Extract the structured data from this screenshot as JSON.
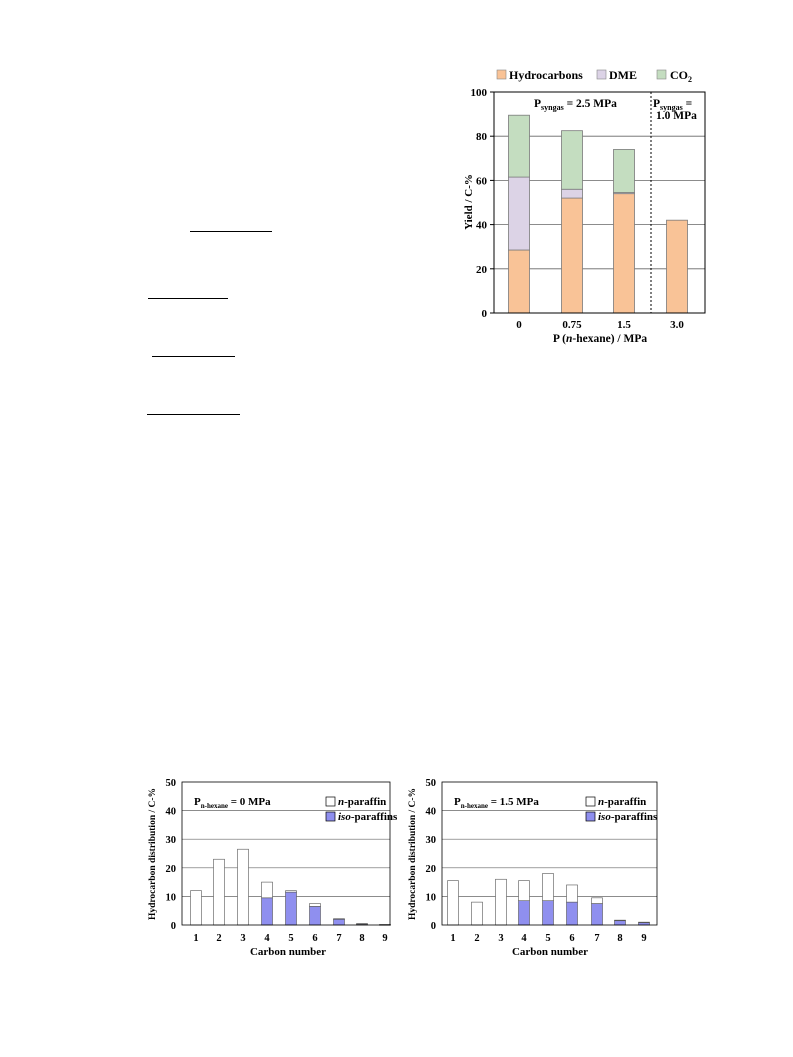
{
  "colors": {
    "hydrocarbons": "#f9c397",
    "dme": "#dcd3e6",
    "co2": "#c4ddc0",
    "grid": "#666666",
    "n_paraffin": "#ffffff",
    "iso_paraffins": "#8f8fef"
  },
  "chart_data": [
    {
      "type": "bar",
      "stacked": true,
      "categories": [
        "0",
        "0.75",
        "1.5",
        "3.0"
      ],
      "series": [
        {
          "name": "Hydrocarbons",
          "values": [
            28.5,
            52,
            54,
            42
          ]
        },
        {
          "name": "DME",
          "values": [
            33,
            4,
            0.5,
            0
          ]
        },
        {
          "name": "CO2",
          "values": [
            28,
            26.5,
            19.5,
            0
          ]
        }
      ],
      "legend": {
        "hydrocarbons": "Hydrocarbons",
        "dme": "DME",
        "co2": "CO",
        "co2_sub": "2"
      },
      "xlabel_pre": "P (",
      "xlabel_italic": "n",
      "xlabel_post": "-hexane) / MPa",
      "ylabel": "Yield / C-%",
      "ylim": [
        0,
        100
      ],
      "yticks": [
        "0",
        "20",
        "40",
        "60",
        "80",
        "100"
      ],
      "grid": true,
      "legend_position": "top",
      "annotations": {
        "left_p": "P",
        "left_sub": "syngas",
        "left_rest": " = 2.5 MPa",
        "right_p": "P",
        "right_sub": "syngas",
        "right_rest": " =",
        "right_line2": "1.0 MPa"
      }
    },
    {
      "type": "bar",
      "stacked": true,
      "categories": [
        "1",
        "2",
        "3",
        "4",
        "5",
        "6",
        "7",
        "8",
        "9"
      ],
      "series": [
        {
          "name": "iso-paraffins",
          "values": [
            0,
            0,
            0,
            9.5,
            11.5,
            6.5,
            2,
            0.3,
            0.1
          ]
        },
        {
          "name": "n-paraffin",
          "values": [
            12,
            23,
            26.5,
            5.5,
            0.5,
            1,
            0.2,
            0.2,
            0.1
          ]
        }
      ],
      "legend": {
        "n_italic": "n",
        "n_rest": "-paraffin",
        "iso_italic": "iso",
        "iso_rest": "-paraffins"
      },
      "panel_label": {
        "p": "P",
        "sub": "n-hexane",
        "rest": " = 0 MPa"
      },
      "xlabel": "Carbon number",
      "ylabel": "Hydrocarbon distribution / C-%",
      "ylim": [
        0,
        50
      ],
      "yticks": [
        "0",
        "10",
        "20",
        "30",
        "40",
        "50"
      ],
      "grid": true,
      "legend_position": "top-right"
    },
    {
      "type": "bar",
      "stacked": true,
      "categories": [
        "1",
        "2",
        "3",
        "4",
        "5",
        "6",
        "7",
        "8",
        "9"
      ],
      "series": [
        {
          "name": "iso-paraffins",
          "values": [
            0,
            0,
            0,
            8.5,
            8.5,
            8,
            7.5,
            1.5,
            0.8
          ]
        },
        {
          "name": "n-paraffin",
          "values": [
            15.5,
            8,
            16,
            7,
            9.5,
            6,
            2,
            0.2,
            0.2
          ]
        }
      ],
      "legend": {
        "n_italic": "n",
        "n_rest": "-paraffin",
        "iso_italic": "iso",
        "iso_rest": "-paraffins"
      },
      "panel_label": {
        "p": "P",
        "sub": "n-hexane",
        "rest": " = 1.5 MPa"
      },
      "xlabel": "Carbon number",
      "ylabel": "Hydrocarbon distribution / C-%",
      "ylim": [
        0,
        50
      ],
      "yticks": [
        "0",
        "10",
        "20",
        "30",
        "40",
        "50"
      ],
      "grid": true,
      "legend_position": "top-right"
    }
  ]
}
